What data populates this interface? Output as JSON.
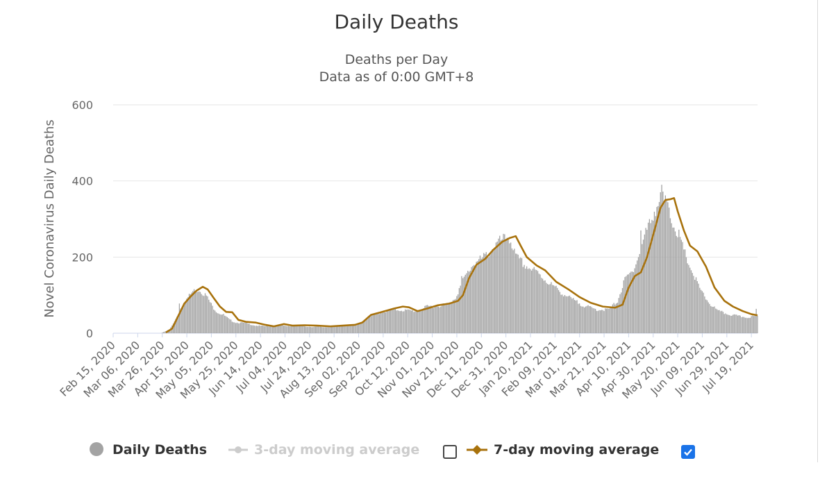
{
  "title": "Daily Deaths",
  "subtitle": "Deaths per Day",
  "subtitle2": "Data as of 0:00 GMT+8",
  "legend": {
    "daily": "Daily Deaths",
    "ma3": "3-day moving average",
    "ma7": "7-day moving average",
    "ma3_checked": false,
    "ma7_checked": true
  },
  "colors": {
    "bars": "#a3a3a3",
    "ma7": "#a8720c",
    "ma3_disabled": "#cccccc",
    "grid": "#e6e6e6",
    "checkbox": "#1a73e8"
  },
  "chart_data": {
    "type": "bar",
    "title": "Daily Deaths",
    "subtitle": [
      "Deaths per Day",
      "Data as of 0:00 GMT+8"
    ],
    "ylabel": "Novel Coronavirus Daily Deaths",
    "xlabel": "",
    "ylim": [
      0,
      600
    ],
    "yticks": [
      0,
      200,
      400,
      600
    ],
    "grid": true,
    "legend_position": "bottom",
    "x_start": "2020-02-15",
    "x_end": "2021-07-24",
    "x_tick_labels": [
      "Feb 15, 2020",
      "Mar 06, 2020",
      "Mar 26, 2020",
      "Apr 15, 2020",
      "May 05, 2020",
      "May 25, 2020",
      "Jun 14, 2020",
      "Jul 04, 2020",
      "Jul 24, 2020",
      "Aug 13, 2020",
      "Sep 02, 2020",
      "Sep 22, 2020",
      "Oct 12, 2020",
      "Nov 01, 2020",
      "Nov 21, 2020",
      "Dec 11, 2020",
      "Dec 31, 2020",
      "Jan 20, 2021",
      "Feb 09, 2021",
      "Mar 01, 2021",
      "Mar 21, 2021",
      "Apr 10, 2021",
      "Apr 30, 2021",
      "May 20, 2021",
      "Jun 09, 2021",
      "Jun 29, 2021",
      "Jul 19, 2021"
    ],
    "series": [
      {
        "name": "Daily Deaths",
        "type": "bar",
        "keypoints": [
          [
            "2020-02-15",
            0
          ],
          [
            "2020-03-25",
            0
          ],
          [
            "2020-03-27",
            3
          ],
          [
            "2020-04-01",
            10
          ],
          [
            "2020-04-05",
            30
          ],
          [
            "2020-04-10",
            65
          ],
          [
            "2020-04-15",
            90
          ],
          [
            "2020-04-20",
            110
          ],
          [
            "2020-04-25",
            115
          ],
          [
            "2020-05-01",
            98
          ],
          [
            "2020-05-06",
            70
          ],
          [
            "2020-05-10",
            55
          ],
          [
            "2020-05-15",
            48
          ],
          [
            "2020-05-20",
            35
          ],
          [
            "2020-05-25",
            28
          ],
          [
            "2020-06-01",
            27
          ],
          [
            "2020-06-10",
            20
          ],
          [
            "2020-06-20",
            18
          ],
          [
            "2020-06-28",
            21
          ],
          [
            "2020-07-05",
            19
          ],
          [
            "2020-07-15",
            19
          ],
          [
            "2020-07-25",
            17
          ],
          [
            "2020-08-05",
            16
          ],
          [
            "2020-08-15",
            18
          ],
          [
            "2020-08-25",
            20
          ],
          [
            "2020-09-01",
            22
          ],
          [
            "2020-09-10",
            42
          ],
          [
            "2020-09-20",
            55
          ],
          [
            "2020-10-01",
            62
          ],
          [
            "2020-10-10",
            60
          ],
          [
            "2020-10-20",
            58
          ],
          [
            "2020-10-28",
            70
          ],
          [
            "2020-11-05",
            72
          ],
          [
            "2020-11-15",
            78
          ],
          [
            "2020-11-20",
            95
          ],
          [
            "2020-11-28",
            150
          ],
          [
            "2020-12-05",
            185
          ],
          [
            "2020-12-12",
            195
          ],
          [
            "2020-12-18",
            215
          ],
          [
            "2020-12-25",
            238
          ],
          [
            "2021-01-01",
            252
          ],
          [
            "2021-01-04",
            245
          ],
          [
            "2021-01-08",
            200
          ],
          [
            "2021-01-15",
            180
          ],
          [
            "2021-01-25",
            160
          ],
          [
            "2021-02-05",
            130
          ],
          [
            "2021-02-15",
            105
          ],
          [
            "2021-02-25",
            85
          ],
          [
            "2021-03-05",
            72
          ],
          [
            "2021-03-15",
            62
          ],
          [
            "2021-03-25",
            62
          ],
          [
            "2021-04-01",
            85
          ],
          [
            "2021-04-07",
            140
          ],
          [
            "2021-04-12",
            158
          ],
          [
            "2021-04-18",
            200
          ],
          [
            "2021-04-23",
            255
          ],
          [
            "2021-04-28",
            295
          ],
          [
            "2021-05-02",
            330
          ],
          [
            "2021-05-06",
            350
          ],
          [
            "2021-05-10",
            345
          ],
          [
            "2021-05-15",
            300
          ],
          [
            "2021-05-20",
            265
          ],
          [
            "2021-05-25",
            215
          ],
          [
            "2021-06-01",
            160
          ],
          [
            "2021-06-08",
            110
          ],
          [
            "2021-06-15",
            78
          ],
          [
            "2021-06-22",
            58
          ],
          [
            "2021-06-30",
            50
          ],
          [
            "2021-07-08",
            45
          ],
          [
            "2021-07-15",
            42
          ],
          [
            "2021-07-24",
            45
          ]
        ],
        "spikes": [
          [
            "2021-05-07",
            390
          ],
          [
            "2021-05-08",
            372
          ],
          [
            "2021-04-20",
            270
          ],
          [
            "2021-04-08",
            150
          ],
          [
            "2020-04-09",
            78
          ],
          [
            "2020-12-30",
            260
          ],
          [
            "2021-07-23",
            64
          ],
          [
            "2021-05-13",
            330
          ],
          [
            "2020-11-25",
            150
          ]
        ]
      },
      {
        "name": "7-day moving average",
        "type": "line",
        "keypoints": [
          [
            "2020-03-29",
            2
          ],
          [
            "2020-04-03",
            12
          ],
          [
            "2020-04-08",
            45
          ],
          [
            "2020-04-13",
            78
          ],
          [
            "2020-04-18",
            96
          ],
          [
            "2020-04-23",
            112
          ],
          [
            "2020-04-28",
            122
          ],
          [
            "2020-05-02",
            115
          ],
          [
            "2020-05-07",
            92
          ],
          [
            "2020-05-12",
            70
          ],
          [
            "2020-05-17",
            56
          ],
          [
            "2020-05-22",
            55
          ],
          [
            "2020-05-27",
            35
          ],
          [
            "2020-06-02",
            30
          ],
          [
            "2020-06-10",
            28
          ],
          [
            "2020-06-18",
            22
          ],
          [
            "2020-06-25",
            18
          ],
          [
            "2020-07-03",
            24
          ],
          [
            "2020-07-10",
            20
          ],
          [
            "2020-07-20",
            21
          ],
          [
            "2020-07-30",
            20
          ],
          [
            "2020-08-10",
            18
          ],
          [
            "2020-08-20",
            20
          ],
          [
            "2020-08-30",
            22
          ],
          [
            "2020-09-05",
            28
          ],
          [
            "2020-09-12",
            48
          ],
          [
            "2020-09-20",
            55
          ],
          [
            "2020-10-01",
            65
          ],
          [
            "2020-10-08",
            70
          ],
          [
            "2020-10-13",
            68
          ],
          [
            "2020-10-20",
            58
          ],
          [
            "2020-10-28",
            65
          ],
          [
            "2020-11-05",
            73
          ],
          [
            "2020-11-15",
            78
          ],
          [
            "2020-11-22",
            85
          ],
          [
            "2020-11-26",
            100
          ],
          [
            "2020-12-01",
            145
          ],
          [
            "2020-12-07",
            180
          ],
          [
            "2020-12-14",
            195
          ],
          [
            "2020-12-21",
            220
          ],
          [
            "2020-12-28",
            240
          ],
          [
            "2021-01-03",
            250
          ],
          [
            "2021-01-08",
            255
          ],
          [
            "2021-01-12",
            230
          ],
          [
            "2021-01-17",
            200
          ],
          [
            "2021-01-25",
            178
          ],
          [
            "2021-02-01",
            165
          ],
          [
            "2021-02-10",
            135
          ],
          [
            "2021-02-20",
            115
          ],
          [
            "2021-03-01",
            95
          ],
          [
            "2021-03-10",
            80
          ],
          [
            "2021-03-20",
            70
          ],
          [
            "2021-03-30",
            67
          ],
          [
            "2021-04-05",
            75
          ],
          [
            "2021-04-10",
            120
          ],
          [
            "2021-04-15",
            150
          ],
          [
            "2021-04-20",
            160
          ],
          [
            "2021-04-25",
            200
          ],
          [
            "2021-05-01",
            270
          ],
          [
            "2021-05-06",
            330
          ],
          [
            "2021-05-10",
            350
          ],
          [
            "2021-05-14",
            352
          ],
          [
            "2021-05-17",
            355
          ],
          [
            "2021-05-20",
            320
          ],
          [
            "2021-05-25",
            270
          ],
          [
            "2021-05-30",
            230
          ],
          [
            "2021-06-05",
            215
          ],
          [
            "2021-06-12",
            175
          ],
          [
            "2021-06-19",
            120
          ],
          [
            "2021-06-27",
            85
          ],
          [
            "2021-07-04",
            70
          ],
          [
            "2021-07-12",
            58
          ],
          [
            "2021-07-19",
            50
          ],
          [
            "2021-07-24",
            47
          ]
        ]
      }
    ]
  }
}
